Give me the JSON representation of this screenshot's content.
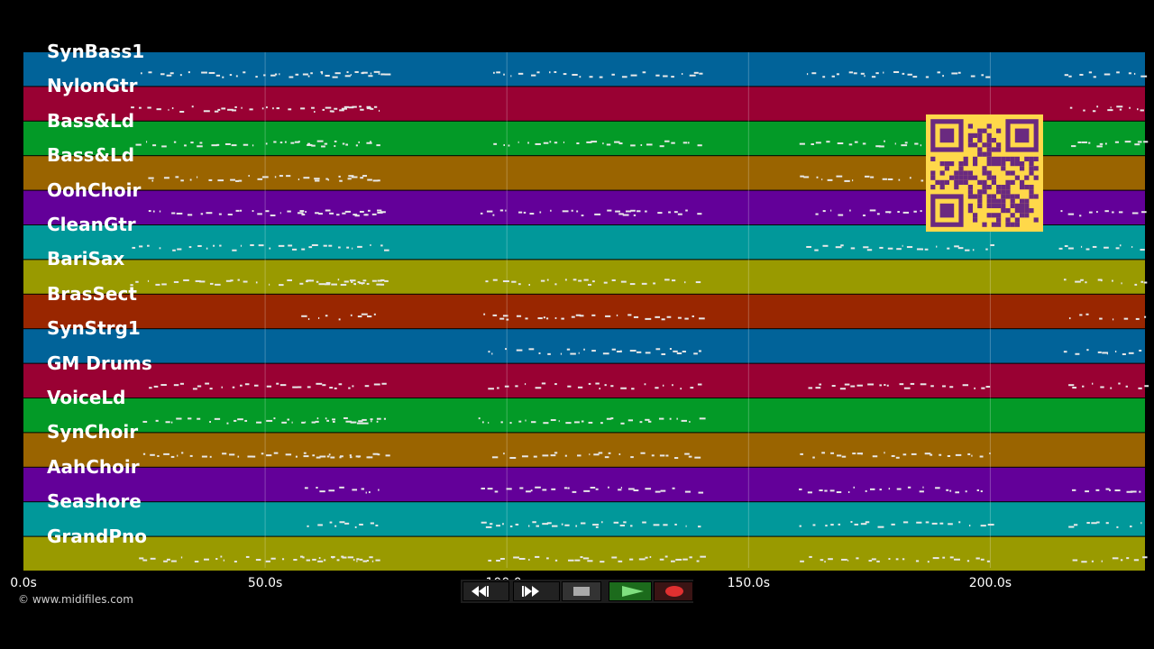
{
  "colors": {
    "background": "#000000",
    "note": "#e8e8e8",
    "grid": "#ffffff",
    "track_palette": [
      "#016399",
      "#990133",
      "#039a27",
      "#9a6400",
      "#630099",
      "#01989a",
      "#999a00",
      "#992600"
    ],
    "qr_bg": "#ffd84a",
    "qr_fg": "#6a2a80"
  },
  "timeline": {
    "min_seconds": 0,
    "max_seconds": 232,
    "ticks": [
      0,
      50,
      100,
      150,
      200
    ]
  },
  "axis_labels": [
    "0.0s",
    "50.0s",
    "100.0s",
    "150.0s",
    "200.0s"
  ],
  "tracks": [
    {
      "name": "SynBass1"
    },
    {
      "name": "NylonGtr"
    },
    {
      "name": "Bass&Ld"
    },
    {
      "name": "Bass&Ld"
    },
    {
      "name": "OohChoir"
    },
    {
      "name": "CleanGtr"
    },
    {
      "name": "BariSax"
    },
    {
      "name": "BrasSect"
    },
    {
      "name": "SynStrg1"
    },
    {
      "name": "GM Drums"
    },
    {
      "name": "VoiceLd"
    },
    {
      "name": "SynChoir"
    },
    {
      "name": "AahChoir"
    },
    {
      "name": "Seashore"
    },
    {
      "name": "GrandPno"
    }
  ],
  "copyright": "© www.midifiles.com",
  "transport": {
    "rewind_icon": "rewind-icon",
    "fast_forward_icon": "fast-forward-icon",
    "stop_icon": "stop-icon",
    "play_icon": "play-icon",
    "record_icon": "record-icon"
  },
  "qr_icon": "qr-code-icon"
}
